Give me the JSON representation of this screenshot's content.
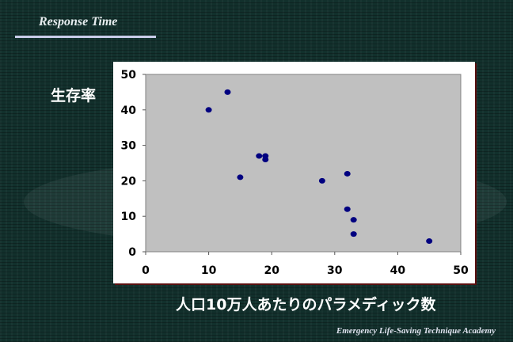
{
  "slide": {
    "title": "Response Time",
    "footer": "Emergency Life-Saving Technique Academy"
  },
  "chart_data": {
    "type": "scatter",
    "title": "",
    "xlabel": "人口10万人あたりのパラメディック数",
    "ylabel": "生存率",
    "xlim": [
      0,
      50
    ],
    "ylim": [
      0,
      50
    ],
    "xticks": [
      "0",
      "10",
      "20",
      "30",
      "40",
      "50"
    ],
    "yticks": [
      "0",
      "10",
      "20",
      "30",
      "40",
      "50"
    ],
    "grid": false,
    "marker_color": "#000080",
    "plot_background": "#c0c0c0",
    "points": [
      {
        "x": 10,
        "y": 40
      },
      {
        "x": 13,
        "y": 45
      },
      {
        "x": 15,
        "y": 21
      },
      {
        "x": 18,
        "y": 27
      },
      {
        "x": 19,
        "y": 27
      },
      {
        "x": 19,
        "y": 26
      },
      {
        "x": 28,
        "y": 20
      },
      {
        "x": 32,
        "y": 22
      },
      {
        "x": 32,
        "y": 12
      },
      {
        "x": 33,
        "y": 9
      },
      {
        "x": 33,
        "y": 5
      },
      {
        "x": 45,
        "y": 3
      }
    ]
  }
}
